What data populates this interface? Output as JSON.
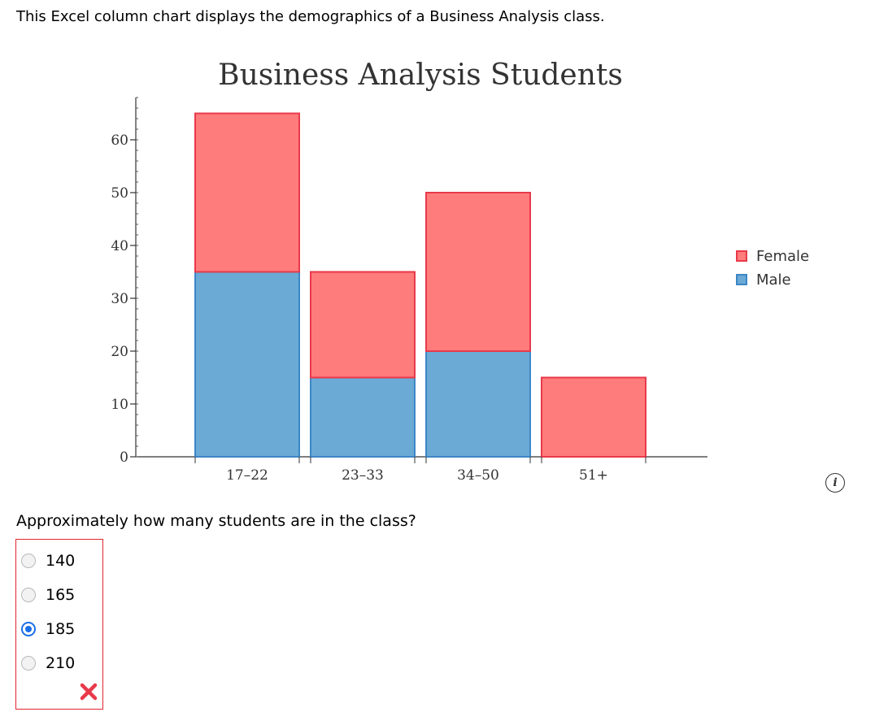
{
  "intro_text": "This Excel column chart displays the demographics of a Business Analysis class.",
  "chart_data": {
    "type": "bar",
    "stacked": true,
    "title": "Business Analysis Students",
    "xlabel": "",
    "ylabel": "",
    "categories": [
      "17–22",
      "23–33",
      "34–50",
      "51+"
    ],
    "series": [
      {
        "name": "Male",
        "values": [
          35,
          15,
          20,
          0
        ],
        "color": "#6aaad5"
      },
      {
        "name": "Female",
        "values": [
          30,
          20,
          30,
          15
        ],
        "color": "#ff7c7c"
      }
    ],
    "ylim": [
      0,
      68
    ],
    "yticks": [
      0,
      10,
      20,
      30,
      40,
      50,
      60
    ],
    "legend_order": [
      "Female",
      "Male"
    ],
    "legend_position": "right",
    "grid": false
  },
  "colors": {
    "male_fill": "#6aaad5",
    "male_edge": "#3d86c6",
    "female_fill": "#ff7c7c",
    "female_edge": "#e8394a",
    "error": "#e0262b",
    "selected": "#1a6fe8"
  },
  "info_icon": {
    "icon": "info-icon",
    "glyph": "i"
  },
  "question": "Approximately how many students are in the class?",
  "options": [
    {
      "label": "140",
      "selected": false
    },
    {
      "label": "165",
      "selected": false
    },
    {
      "label": "185",
      "selected": true
    },
    {
      "label": "210",
      "selected": false
    }
  ],
  "feedback": {
    "icon": "wrong-x-icon",
    "status": "incorrect"
  }
}
